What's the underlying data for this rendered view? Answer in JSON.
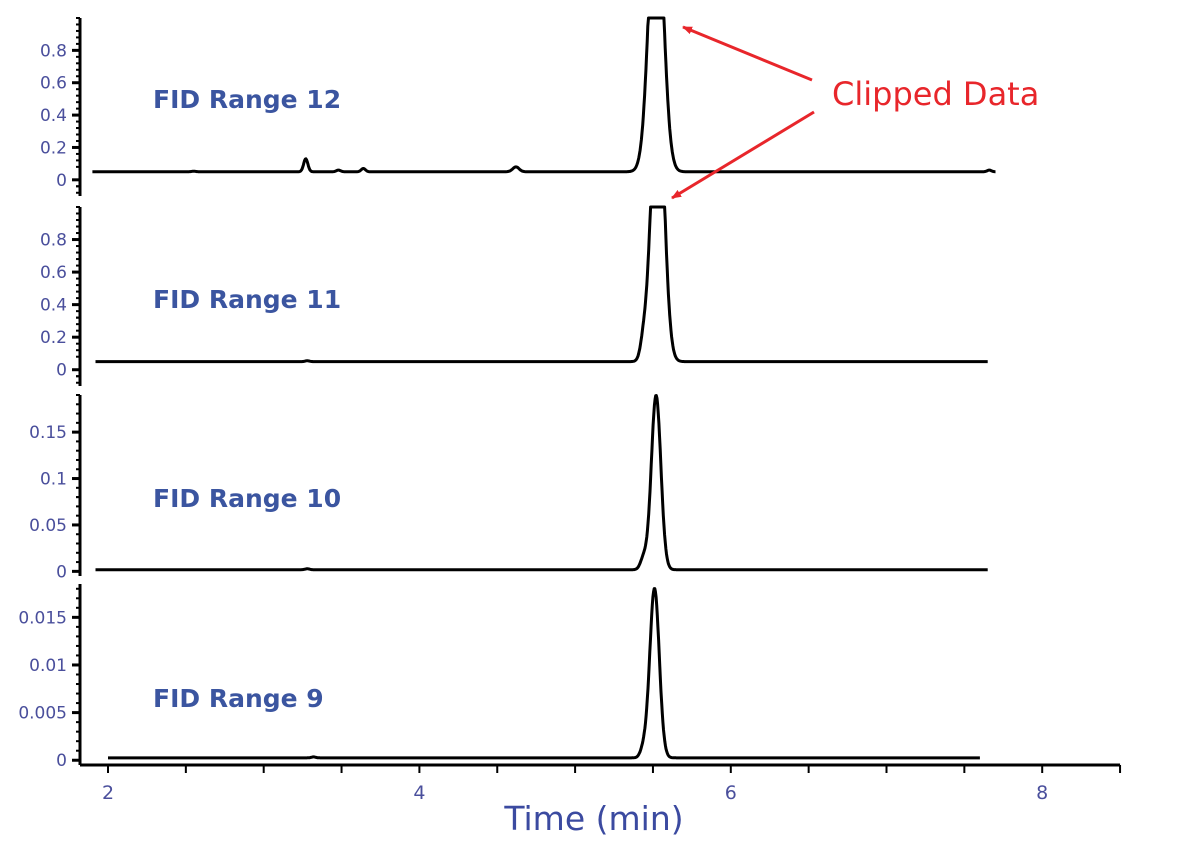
{
  "chart_data": {
    "type": "line",
    "title": "",
    "xlabel": "Time (min)",
    "xlim": [
      1.9,
      8.5
    ],
    "x_ticks": [
      2,
      4,
      6,
      8
    ],
    "x_minor_step": 0.5,
    "annotation": {
      "text": "Clipped Data",
      "color": "#e8262b",
      "points_to": [
        "FID Range 12 peak top",
        "FID Range 11 peak top"
      ]
    },
    "panels": [
      {
        "name": "FID Range 12",
        "ylim": [
          -0.1,
          1.0
        ],
        "y_ticks": [
          0,
          0.2,
          0.4,
          0.6,
          0.8
        ],
        "y_tick_labels": [
          "0",
          "0.2",
          "0.4",
          "0.6",
          "0.8"
        ],
        "baseline": 0.05,
        "clipped": true,
        "x_range": [
          1.9,
          7.7
        ],
        "peaks": [
          {
            "time": 2.55,
            "height": 0.003,
            "width": 0.02
          },
          {
            "time": 3.27,
            "height": 0.08,
            "width": 0.02
          },
          {
            "time": 3.48,
            "height": 0.01,
            "width": 0.02
          },
          {
            "time": 3.64,
            "height": 0.02,
            "width": 0.02
          },
          {
            "time": 4.62,
            "height": 0.03,
            "width": 0.03
          },
          {
            "time": 5.52,
            "height": 1.0,
            "width": 0.05,
            "flat_top": true
          },
          {
            "time": 7.66,
            "height": 0.01,
            "width": 0.02
          }
        ]
      },
      {
        "name": "FID Range 11",
        "ylim": [
          -0.1,
          1.0
        ],
        "y_ticks": [
          0,
          0.2,
          0.4,
          0.6,
          0.8
        ],
        "y_tick_labels": [
          "0",
          "0.2",
          "0.4",
          "0.6",
          "0.8"
        ],
        "baseline": 0.05,
        "clipped": true,
        "x_range": [
          1.92,
          7.65
        ],
        "peaks": [
          {
            "time": 3.28,
            "height": 0.005,
            "width": 0.02
          },
          {
            "time": 5.44,
            "height": 0.1,
            "width": 0.03
          },
          {
            "time": 5.53,
            "height": 1.0,
            "width": 0.045,
            "flat_top": true
          }
        ]
      },
      {
        "name": "FID Range 10",
        "ylim": [
          -0.005,
          0.19
        ],
        "y_ticks": [
          0,
          0.05,
          0.1,
          0.15
        ],
        "y_tick_labels": [
          "0",
          "0.05",
          "0.1",
          "0.15"
        ],
        "baseline": 0.0018,
        "clipped": false,
        "x_range": [
          1.92,
          7.65
        ],
        "peaks": [
          {
            "time": 3.28,
            "height": 0.001,
            "width": 0.02
          },
          {
            "time": 5.44,
            "height": 0.012,
            "width": 0.03
          },
          {
            "time": 5.52,
            "height": 0.188,
            "width": 0.045
          }
        ]
      },
      {
        "name": "FID Range 9",
        "ylim": [
          -0.0005,
          0.0185
        ],
        "y_ticks": [
          0,
          0.005,
          0.01,
          0.015
        ],
        "y_tick_labels": [
          "0",
          "0.005",
          "0.01",
          "0.015"
        ],
        "baseline": 0.00025,
        "clipped": false,
        "x_range": [
          2.0,
          7.6
        ],
        "peaks": [
          {
            "time": 3.32,
            "height": 0.0001,
            "width": 0.02
          },
          {
            "time": 5.44,
            "height": 0.0009,
            "width": 0.03
          },
          {
            "time": 5.51,
            "height": 0.0178,
            "width": 0.045
          }
        ]
      }
    ]
  }
}
